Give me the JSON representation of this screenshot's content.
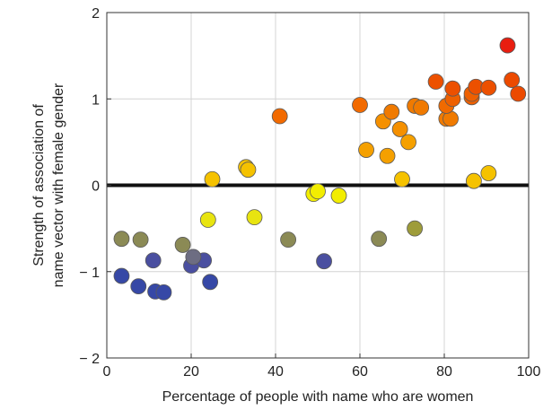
{
  "chart_data": {
    "type": "scatter",
    "title": "",
    "xlabel": "Percentage of people with name who are women",
    "ylabel_lines": [
      "Strength of association of",
      "name vector with female gender"
    ],
    "xlim": [
      0,
      100
    ],
    "ylim": [
      -2,
      2
    ],
    "xticks": [
      0,
      20,
      40,
      60,
      80,
      100
    ],
    "yticks": [
      -2,
      -1,
      0,
      1,
      2
    ],
    "xtick_labels": [
      "0",
      "20",
      "40",
      "60",
      "80",
      "100"
    ],
    "ytick_labels": [
      "− 2",
      "− 1",
      "0",
      "1",
      "2"
    ],
    "grid": true,
    "reference_line_y": 0,
    "points": [
      {
        "x": 3.5,
        "y": -1.05,
        "color": "#3648a6"
      },
      {
        "x": 7.5,
        "y": -1.17,
        "color": "#3648a6"
      },
      {
        "x": 11.5,
        "y": -1.23,
        "color": "#3648a6"
      },
      {
        "x": 13.5,
        "y": -1.24,
        "color": "#3648a6"
      },
      {
        "x": 24.5,
        "y": -1.12,
        "color": "#3648a6"
      },
      {
        "x": 11,
        "y": -0.87,
        "color": "#4a4fa0"
      },
      {
        "x": 20,
        "y": -0.93,
        "color": "#4a4fa0"
      },
      {
        "x": 23,
        "y": -0.87,
        "color": "#4a4fa0"
      },
      {
        "x": 51.5,
        "y": -0.88,
        "color": "#4a4fa0"
      },
      {
        "x": 20.5,
        "y": -0.83,
        "color": "#6d6d82"
      },
      {
        "x": 3.5,
        "y": -0.62,
        "color": "#8b8a55"
      },
      {
        "x": 8,
        "y": -0.63,
        "color": "#8b8a55"
      },
      {
        "x": 18,
        "y": -0.69,
        "color": "#8b8a55"
      },
      {
        "x": 43,
        "y": -0.63,
        "color": "#8b8a55"
      },
      {
        "x": 64.5,
        "y": -0.62,
        "color": "#8b8a55"
      },
      {
        "x": 73,
        "y": -0.5,
        "color": "#9e9c3a"
      },
      {
        "x": 24,
        "y": -0.4,
        "color": "#e8e410"
      },
      {
        "x": 35,
        "y": -0.37,
        "color": "#e8e410"
      },
      {
        "x": 49,
        "y": -0.1,
        "color": "#f2ed00"
      },
      {
        "x": 50,
        "y": -0.07,
        "color": "#f2ed00"
      },
      {
        "x": 55,
        "y": -0.12,
        "color": "#f2ed00"
      },
      {
        "x": 25,
        "y": 0.07,
        "color": "#f5c200"
      },
      {
        "x": 33,
        "y": 0.21,
        "color": "#f5c200"
      },
      {
        "x": 33.5,
        "y": 0.18,
        "color": "#f5c200"
      },
      {
        "x": 70,
        "y": 0.07,
        "color": "#f5c200"
      },
      {
        "x": 87,
        "y": 0.05,
        "color": "#f5c200"
      },
      {
        "x": 90.5,
        "y": 0.14,
        "color": "#f5c200"
      },
      {
        "x": 61.5,
        "y": 0.41,
        "color": "#f5a000"
      },
      {
        "x": 66.5,
        "y": 0.34,
        "color": "#f5a000"
      },
      {
        "x": 71.5,
        "y": 0.5,
        "color": "#f5a000"
      },
      {
        "x": 69.5,
        "y": 0.65,
        "color": "#f59000"
      },
      {
        "x": 65.5,
        "y": 0.74,
        "color": "#f59000"
      },
      {
        "x": 41,
        "y": 0.8,
        "color": "#f26a00"
      },
      {
        "x": 60,
        "y": 0.93,
        "color": "#f26a00"
      },
      {
        "x": 67.5,
        "y": 0.85,
        "color": "#f07a00"
      },
      {
        "x": 73,
        "y": 0.92,
        "color": "#f07a00"
      },
      {
        "x": 74.5,
        "y": 0.9,
        "color": "#f07a00"
      },
      {
        "x": 80.5,
        "y": 0.77,
        "color": "#f07a00"
      },
      {
        "x": 81.5,
        "y": 0.77,
        "color": "#f07a00"
      },
      {
        "x": 80.5,
        "y": 0.92,
        "color": "#f06a00"
      },
      {
        "x": 82,
        "y": 1.0,
        "color": "#ee6000"
      },
      {
        "x": 86.5,
        "y": 1.02,
        "color": "#ee6000"
      },
      {
        "x": 86.5,
        "y": 1.06,
        "color": "#ee6000"
      },
      {
        "x": 78,
        "y": 1.2,
        "color": "#ec5000"
      },
      {
        "x": 82,
        "y": 1.12,
        "color": "#ec5000"
      },
      {
        "x": 87.5,
        "y": 1.14,
        "color": "#ec5000"
      },
      {
        "x": 90.5,
        "y": 1.13,
        "color": "#ec5000"
      },
      {
        "x": 96,
        "y": 1.22,
        "color": "#ec4a00"
      },
      {
        "x": 97.5,
        "y": 1.06,
        "color": "#ec4a00"
      },
      {
        "x": 95,
        "y": 1.62,
        "color": "#e81e10"
      }
    ]
  }
}
